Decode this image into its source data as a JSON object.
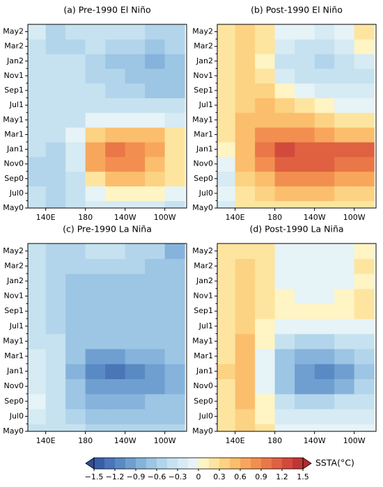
{
  "chart_data": [
    {
      "type": "heatmap",
      "title": "(a) Pre-1990 El Niño",
      "x": [
        130,
        150,
        170,
        190,
        210,
        230,
        250,
        270
      ],
      "y": [
        0,
        2,
        4,
        6,
        8,
        10,
        12,
        14,
        16,
        18,
        20,
        22,
        24
      ],
      "xlim": [
        122,
        282
      ],
      "ylim": [
        0,
        25
      ],
      "xticks": [
        {
          "value": 140,
          "label": "140E"
        },
        180,
        {
          "value": 220,
          "label": "140W"
        },
        {
          "value": 260,
          "label": "100W"
        }
      ],
      "yticks": [
        {
          "value": 0,
          "label": "May0"
        },
        {
          "value": 2,
          "label": "Jul0"
        },
        {
          "value": 4,
          "label": "Sep0"
        },
        {
          "value": 6,
          "label": "Nov0"
        },
        {
          "value": 8,
          "label": "Jan1"
        },
        {
          "value": 10,
          "label": "Mar1"
        },
        {
          "value": 12,
          "label": "May1"
        },
        {
          "value": 14,
          "label": "Jul1"
        },
        {
          "value": 16,
          "label": "Sep1"
        },
        {
          "value": 18,
          "label": "Nov1"
        },
        {
          "value": 20,
          "label": "Jan2"
        },
        {
          "value": 22,
          "label": "Mar2"
        },
        {
          "value": 24,
          "label": "May2"
        }
      ],
      "yminorticks": [
        1,
        3,
        5,
        7,
        9,
        11,
        13,
        15,
        17,
        19,
        21,
        23
      ],
      "values": [
        [
          -0.4,
          -0.5,
          -0.3,
          -0.2,
          -0.2,
          -0.2,
          -0.2,
          -0.3
        ],
        [
          -0.4,
          -0.5,
          -0.3,
          0.0,
          0.1,
          0.1,
          0.1,
          -0.1
        ],
        [
          -0.5,
          -0.5,
          -0.3,
          0.3,
          0.5,
          0.5,
          0.4,
          0.2
        ],
        [
          -0.5,
          -0.5,
          -0.2,
          0.7,
          0.9,
          0.8,
          0.6,
          0.3
        ],
        [
          -0.4,
          -0.5,
          -0.2,
          0.7,
          1.0,
          0.9,
          0.7,
          0.3
        ],
        [
          -0.4,
          -0.4,
          -0.1,
          0.4,
          0.6,
          0.6,
          0.5,
          0.2
        ],
        [
          -0.4,
          -0.4,
          -0.3,
          -0.1,
          0.0,
          0.0,
          0.0,
          -0.2
        ],
        [
          -0.4,
          -0.4,
          -0.3,
          -0.3,
          -0.3,
          -0.3,
          -0.3,
          -0.4
        ],
        [
          -0.3,
          -0.4,
          -0.4,
          -0.4,
          -0.5,
          -0.5,
          -0.6,
          -0.6
        ],
        [
          -0.3,
          -0.4,
          -0.4,
          -0.5,
          -0.5,
          -0.7,
          -0.7,
          -0.6
        ],
        [
          -0.3,
          -0.4,
          -0.4,
          -0.5,
          -0.6,
          -0.6,
          -0.8,
          -0.6
        ],
        [
          -0.3,
          -0.5,
          -0.5,
          -0.4,
          -0.5,
          -0.5,
          -0.6,
          -0.5
        ],
        [
          -0.2,
          -0.5,
          -0.4,
          -0.4,
          -0.4,
          -0.4,
          -0.5,
          -0.5
        ]
      ]
    },
    {
      "type": "heatmap",
      "title": "(b) Post-1990 El Niño",
      "x": [
        130,
        150,
        170,
        190,
        210,
        230,
        250,
        270
      ],
      "y": [
        0,
        2,
        4,
        6,
        8,
        10,
        12,
        14,
        16,
        18,
        20,
        22,
        24
      ],
      "xlim": [
        122,
        282
      ],
      "ylim": [
        0,
        25
      ],
      "xticks": [
        {
          "value": 140,
          "label": "140E"
        },
        180,
        {
          "value": 220,
          "label": "140W"
        },
        {
          "value": 260,
          "label": "100W"
        }
      ],
      "yticks": [
        {
          "value": 0,
          "label": "May0"
        },
        {
          "value": 2,
          "label": "Jul0"
        },
        {
          "value": 4,
          "label": "Sep0"
        },
        {
          "value": 6,
          "label": "Nov0"
        },
        {
          "value": 8,
          "label": "Jan1"
        },
        {
          "value": 10,
          "label": "Mar1"
        },
        {
          "value": 12,
          "label": "May1"
        },
        {
          "value": 14,
          "label": "Jul1"
        },
        {
          "value": 16,
          "label": "Sep1"
        },
        {
          "value": 18,
          "label": "Nov1"
        },
        {
          "value": 20,
          "label": "Jan2"
        },
        {
          "value": 22,
          "label": "Mar2"
        },
        {
          "value": 24,
          "label": "May2"
        }
      ],
      "yminorticks": [
        1,
        3,
        5,
        7,
        9,
        11,
        13,
        15,
        17,
        19,
        21,
        23
      ],
      "values": [
        [
          -0.2,
          0.2,
          0.3,
          0.3,
          0.3,
          0.2,
          0.2,
          0.3
        ],
        [
          -0.1,
          0.3,
          0.4,
          0.5,
          0.5,
          0.5,
          0.4,
          0.4
        ],
        [
          -0.2,
          0.4,
          0.6,
          0.8,
          0.8,
          0.8,
          0.7,
          0.7
        ],
        [
          0.0,
          0.5,
          0.9,
          1.2,
          1.2,
          1.1,
          1.0,
          1.0
        ],
        [
          0.1,
          0.5,
          1.0,
          1.3,
          1.2,
          1.1,
          1.1,
          1.1
        ],
        [
          0.2,
          0.5,
          0.8,
          0.9,
          0.8,
          0.7,
          0.6,
          0.5
        ],
        [
          0.3,
          0.5,
          0.6,
          0.6,
          0.5,
          0.4,
          0.3,
          0.3
        ],
        [
          0.3,
          0.4,
          0.5,
          0.4,
          0.2,
          0.1,
          0.0,
          0.0
        ],
        [
          0.3,
          0.4,
          0.4,
          0.1,
          -0.1,
          -0.2,
          -0.2,
          -0.2
        ],
        [
          0.3,
          0.4,
          0.2,
          -0.2,
          -0.4,
          -0.4,
          -0.4,
          -0.3
        ],
        [
          0.3,
          0.4,
          0.1,
          -0.3,
          -0.4,
          -0.5,
          -0.4,
          -0.2
        ],
        [
          0.3,
          0.4,
          0.2,
          -0.2,
          -0.3,
          -0.3,
          -0.2,
          0.1
        ],
        [
          0.3,
          0.4,
          0.3,
          0.0,
          -0.1,
          -0.2,
          0.0,
          0.2
        ]
      ]
    },
    {
      "type": "heatmap",
      "title": "(c) Pre-1990 La Niña",
      "x": [
        130,
        150,
        170,
        190,
        210,
        230,
        250,
        270
      ],
      "y": [
        0,
        2,
        4,
        6,
        8,
        10,
        12,
        14,
        16,
        18,
        20,
        22,
        24
      ],
      "xlim": [
        122,
        282
      ],
      "ylim": [
        0,
        25
      ],
      "xticks": [
        {
          "value": 140,
          "label": "140E"
        },
        180,
        {
          "value": 220,
          "label": "140W"
        },
        {
          "value": 260,
          "label": "100W"
        }
      ],
      "yticks": [
        {
          "value": 0,
          "label": "May0"
        },
        {
          "value": 2,
          "label": "Jul0"
        },
        {
          "value": 4,
          "label": "Sep0"
        },
        {
          "value": 6,
          "label": "Nov0"
        },
        {
          "value": 8,
          "label": "Jan1"
        },
        {
          "value": 10,
          "label": "Mar1"
        },
        {
          "value": 12,
          "label": "May1"
        },
        {
          "value": 14,
          "label": "Jul1"
        },
        {
          "value": 16,
          "label": "Sep1"
        },
        {
          "value": 18,
          "label": "Nov1"
        },
        {
          "value": 20,
          "label": "Jan2"
        },
        {
          "value": 22,
          "label": "Mar2"
        },
        {
          "value": 24,
          "label": "May2"
        }
      ],
      "yminorticks": [
        1,
        3,
        5,
        7,
        9,
        11,
        13,
        15,
        17,
        19,
        21,
        23
      ],
      "values": [
        [
          -0.3,
          -0.4,
          -0.4,
          -0.5,
          -0.5,
          -0.5,
          -0.5,
          -0.5
        ],
        [
          -0.2,
          -0.3,
          -0.5,
          -0.6,
          -0.6,
          -0.6,
          -0.6,
          -0.6
        ],
        [
          0.0,
          -0.3,
          -0.6,
          -0.8,
          -0.8,
          -0.8,
          -0.7,
          -0.7
        ],
        [
          -0.2,
          -0.3,
          -0.7,
          -1.0,
          -1.0,
          -1.0,
          -0.9,
          -0.8
        ],
        [
          -0.2,
          -0.3,
          -0.8,
          -1.1,
          -1.2,
          -1.1,
          -1.0,
          -0.8
        ],
        [
          -0.2,
          -0.4,
          -0.6,
          -0.9,
          -0.9,
          -0.8,
          -0.8,
          -0.7
        ],
        [
          -0.3,
          -0.4,
          -0.6,
          -0.7,
          -0.7,
          -0.7,
          -0.7,
          -0.6
        ],
        [
          -0.3,
          -0.5,
          -0.6,
          -0.6,
          -0.6,
          -0.6,
          -0.6,
          -0.6
        ],
        [
          -0.3,
          -0.5,
          -0.6,
          -0.6,
          -0.6,
          -0.6,
          -0.6,
          -0.6
        ],
        [
          -0.3,
          -0.5,
          -0.6,
          -0.7,
          -0.6,
          -0.6,
          -0.6,
          -0.7
        ],
        [
          -0.4,
          -0.5,
          -0.6,
          -0.6,
          -0.6,
          -0.6,
          -0.6,
          -0.7
        ],
        [
          -0.4,
          -0.5,
          -0.5,
          -0.5,
          -0.5,
          -0.5,
          -0.6,
          -0.7
        ],
        [
          -0.4,
          -0.5,
          -0.5,
          -0.4,
          -0.4,
          -0.5,
          -0.5,
          -0.8
        ]
      ]
    },
    {
      "type": "heatmap",
      "title": "(d) Post-1990 La Niña",
      "x": [
        130,
        150,
        170,
        190,
        210,
        230,
        250,
        270
      ],
      "y": [
        0,
        2,
        4,
        6,
        8,
        10,
        12,
        14,
        16,
        18,
        20,
        22,
        24
      ],
      "xlim": [
        122,
        282
      ],
      "ylim": [
        0,
        25
      ],
      "xticks": [
        {
          "value": 140,
          "label": "140E"
        },
        180,
        {
          "value": 220,
          "label": "140W"
        },
        {
          "value": 260,
          "label": "100W"
        }
      ],
      "yticks": [
        {
          "value": 0,
          "label": "May0"
        },
        {
          "value": 2,
          "label": "Jul0"
        },
        {
          "value": 4,
          "label": "Sep0"
        },
        {
          "value": 6,
          "label": "Nov0"
        },
        {
          "value": 8,
          "label": "Jan1"
        },
        {
          "value": 10,
          "label": "Mar1"
        },
        {
          "value": 12,
          "label": "May1"
        },
        {
          "value": 14,
          "label": "Jul1"
        },
        {
          "value": 16,
          "label": "Sep1"
        },
        {
          "value": 18,
          "label": "Nov1"
        },
        {
          "value": 20,
          "label": "Jan2"
        },
        {
          "value": 22,
          "label": "Mar2"
        },
        {
          "value": 24,
          "label": "May2"
        }
      ],
      "yminorticks": [
        1,
        3,
        5,
        7,
        9,
        11,
        13,
        15,
        17,
        19,
        21,
        23
      ],
      "values": [
        [
          0.2,
          0.4,
          0.2,
          0.0,
          -0.1,
          -0.1,
          -0.1,
          -0.1
        ],
        [
          0.2,
          0.4,
          0.1,
          -0.2,
          -0.2,
          -0.2,
          -0.2,
          -0.2
        ],
        [
          0.3,
          0.5,
          0.1,
          -0.4,
          -0.5,
          -0.5,
          -0.4,
          -0.3
        ],
        [
          0.3,
          0.5,
          0.0,
          -0.6,
          -0.9,
          -1.0,
          -0.8,
          -0.5
        ],
        [
          0.4,
          0.6,
          0.0,
          -0.7,
          -1.0,
          -1.1,
          -0.9,
          -0.6
        ],
        [
          0.3,
          0.5,
          0.0,
          -0.6,
          -0.8,
          -0.8,
          -0.6,
          -0.5
        ],
        [
          0.3,
          0.5,
          0.1,
          -0.3,
          -0.5,
          -0.5,
          -0.4,
          -0.3
        ],
        [
          0.2,
          0.4,
          0.1,
          0.0,
          -0.1,
          -0.1,
          -0.1,
          0.0
        ],
        [
          0.2,
          0.4,
          0.3,
          0.1,
          0.1,
          0.1,
          0.1,
          0.2
        ],
        [
          0.2,
          0.4,
          0.3,
          0.1,
          0.0,
          0.0,
          0.1,
          0.2
        ],
        [
          0.2,
          0.4,
          0.3,
          0.0,
          -0.1,
          -0.1,
          0.0,
          0.1
        ],
        [
          0.2,
          0.4,
          0.2,
          -0.1,
          -0.1,
          -0.1,
          0.0,
          0.2
        ],
        [
          0.2,
          0.3,
          0.2,
          -0.1,
          -0.1,
          -0.1,
          0.0,
          0.1
        ]
      ]
    }
  ],
  "colorbar": {
    "label": "SSTA(°C)",
    "levels": [
      -1.5,
      -1.35,
      -1.2,
      -1.05,
      -0.9,
      -0.75,
      -0.6,
      -0.45,
      -0.3,
      -0.15,
      0,
      0.15,
      0.3,
      0.45,
      0.6,
      0.75,
      0.9,
      1.05,
      1.2,
      1.35,
      1.5
    ],
    "colors": [
      "#3a5fa8",
      "#4a75b7",
      "#5a8ac4",
      "#6f9fd0",
      "#86b3db",
      "#9dc5e4",
      "#b3d5eb",
      "#c6e2f0",
      "#d6ebf3",
      "#e6f3f7",
      "#fef4c4",
      "#fde5a0",
      "#fcd283",
      "#fbbe6c",
      "#f8a65c",
      "#f28f50",
      "#ea7747",
      "#df6141",
      "#d24a3b",
      "#c33535"
    ],
    "under_color": "#2f4e9a",
    "over_color": "#b52a2f",
    "ticks": [
      {
        "value": -1.5,
        "label": "−1.5"
      },
      {
        "value": -1.2,
        "label": "−1.2"
      },
      {
        "value": -0.9,
        "label": "−0.9"
      },
      {
        "value": -0.6,
        "label": "−0.6"
      },
      {
        "value": -0.3,
        "label": "−0.3"
      },
      0,
      0.3,
      0.6,
      0.9,
      1.2,
      1.5
    ]
  }
}
